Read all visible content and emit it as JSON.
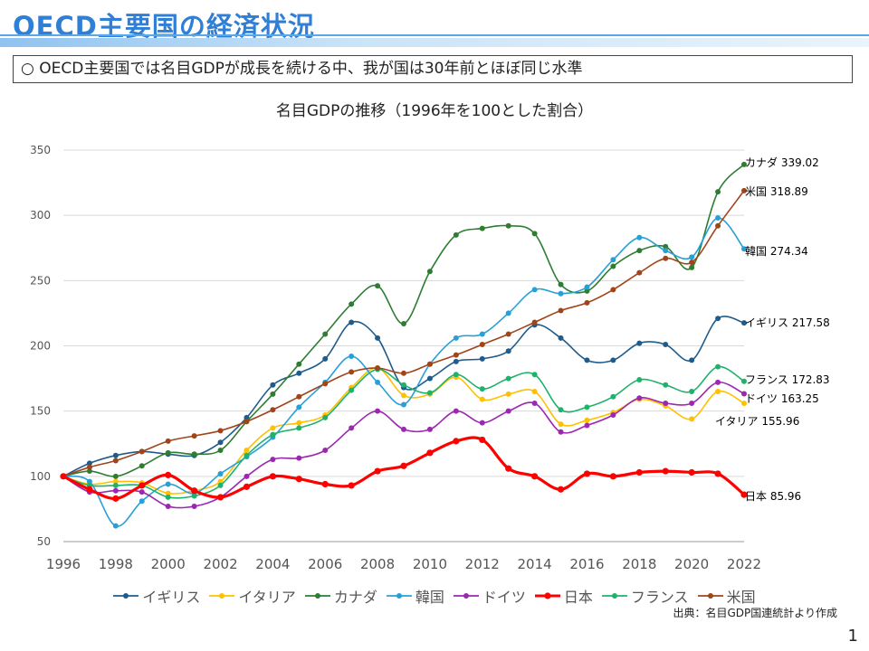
{
  "page": {
    "title": "OECD主要国の経済状況",
    "summary": "○ OECD主要国では名目GDPが成長を続ける中、我が国は30年前とほぼ同じ水準",
    "source": "出典：名目GDP国連統計より作成",
    "page_number": "1"
  },
  "chart_data": {
    "type": "line",
    "title": "名目GDPの推移（1996年を100とした割合）",
    "xlabel": "",
    "ylabel": "",
    "x": [
      1996,
      1997,
      1998,
      1999,
      2000,
      2001,
      2002,
      2003,
      2004,
      2005,
      2006,
      2007,
      2008,
      2009,
      2010,
      2011,
      2012,
      2013,
      2014,
      2015,
      2016,
      2017,
      2018,
      2019,
      2020,
      2021,
      2022
    ],
    "xticks": [
      "1996",
      "1998",
      "2000",
      "2002",
      "2004",
      "2006",
      "2008",
      "2010",
      "2012",
      "2014",
      "2016",
      "2018",
      "2020",
      "2022"
    ],
    "ylim": [
      50,
      350
    ],
    "yticks": [
      "50",
      "100",
      "150",
      "200",
      "250",
      "300",
      "350"
    ],
    "grid": "horizontal",
    "legend_position": "bottom",
    "series": [
      {
        "name": "イギリス",
        "color": "#1f5c8c",
        "bold": false,
        "end_label": "イギリス 217.58",
        "values": [
          100,
          110,
          116,
          119,
          117,
          116,
          126,
          145,
          170,
          179,
          190,
          218,
          206,
          168,
          175,
          188,
          190,
          196,
          216,
          206,
          189,
          189,
          202,
          201,
          189,
          221,
          217.58
        ]
      },
      {
        "name": "イタリア",
        "color": "#ffc000",
        "bold": false,
        "end_label": "イタリア 155.96",
        "values": [
          100,
          94,
          96,
          95,
          87,
          89,
          96,
          120,
          137,
          141,
          147,
          168,
          183,
          162,
          163,
          176,
          159,
          163,
          165,
          140,
          143,
          149,
          159,
          154,
          144,
          165,
          155.96
        ]
      },
      {
        "name": "カナダ",
        "color": "#2e7d32",
        "bold": false,
        "end_label": "カナダ 339.02",
        "values": [
          100,
          104,
          100,
          108,
          118,
          117,
          120,
          142,
          163,
          186,
          209,
          232,
          246,
          217,
          257,
          285,
          290,
          292,
          286,
          247,
          242,
          261,
          273,
          276,
          260,
          318,
          339.02
        ]
      },
      {
        "name": "韓国",
        "color": "#27a0d8",
        "bold": false,
        "end_label": "韓国 274.34",
        "values": [
          100,
          96,
          62,
          81,
          94,
          87,
          102,
          115,
          130,
          153,
          172,
          192,
          172,
          155,
          186,
          206,
          209,
          225,
          243,
          240,
          245,
          266,
          283,
          273,
          268,
          298,
          274.34
        ]
      },
      {
        "name": "ドイツ",
        "color": "#9c27b0",
        "bold": false,
        "end_label": "ドイツ 163.25",
        "values": [
          100,
          88,
          89,
          88,
          77,
          77,
          84,
          100,
          113,
          114,
          120,
          137,
          150,
          136,
          136,
          150,
          141,
          150,
          156,
          134,
          139,
          147,
          160,
          156,
          156,
          172,
          163.25
        ]
      },
      {
        "name": "日本",
        "color": "#ff0000",
        "bold": true,
        "end_label": "日本 85.96",
        "values": [
          100,
          90,
          83,
          93,
          101,
          89,
          84,
          92,
          100,
          98,
          94,
          93,
          104,
          108,
          118,
          127,
          128,
          106,
          100,
          90,
          102,
          100,
          103,
          104,
          103,
          102,
          85.96
        ]
      },
      {
        "name": "フランス",
        "color": "#1fb26b",
        "bold": false,
        "end_label": "フランス 172.83",
        "values": [
          100,
          93,
          93,
          93,
          84,
          85,
          93,
          116,
          132,
          137,
          145,
          166,
          182,
          170,
          164,
          178,
          167,
          175,
          178,
          151,
          153,
          161,
          174,
          170,
          165,
          184,
          172.83
        ]
      },
      {
        "name": "米国",
        "color": "#a0441a",
        "bold": false,
        "end_label": "米国 318.89",
        "values": [
          100,
          107,
          112,
          119,
          127,
          131,
          135,
          142,
          151,
          161,
          171,
          180,
          183,
          179,
          186,
          193,
          201,
          209,
          218,
          227,
          233,
          243,
          256,
          267,
          264,
          292,
          318.89
        ]
      }
    ]
  }
}
